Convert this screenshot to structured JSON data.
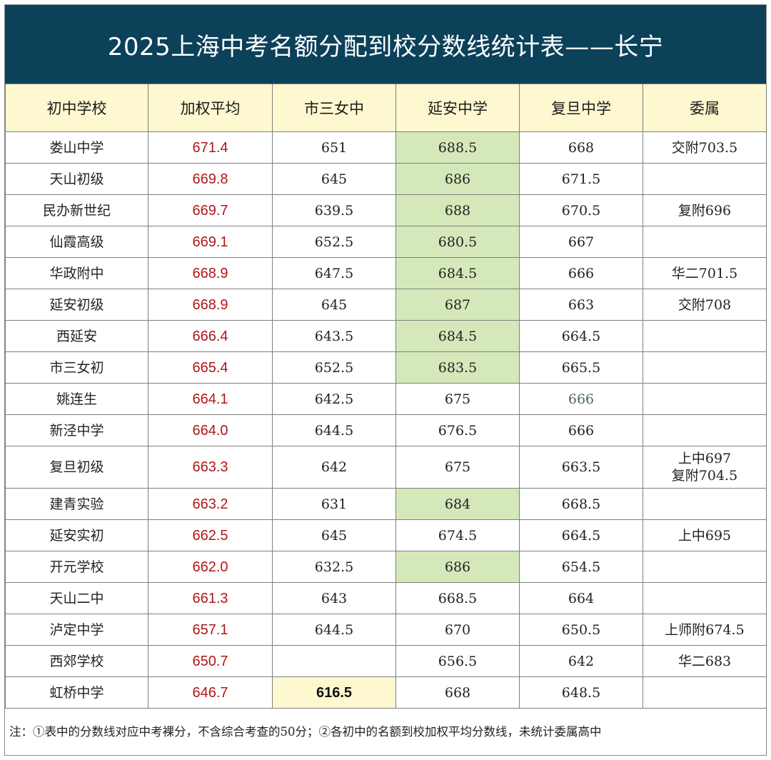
{
  "title": "2025上海中考名额分配到校分数线统计表——长宁",
  "headers": [
    "初中学校",
    "加权平均",
    "市三女中",
    "延安中学",
    "复旦中学",
    "委属"
  ],
  "rows": [
    {
      "school": "娄山中学",
      "avg": "671.4",
      "s3": "651",
      "yanan": "688.5",
      "fudan": "668",
      "wei": [
        "交附703.5"
      ]
    },
    {
      "school": "天山初级",
      "avg": "669.8",
      "s3": "645",
      "yanan": "686",
      "fudan": "671.5",
      "wei": []
    },
    {
      "school": "民办新世纪",
      "avg": "669.7",
      "s3": "639.5",
      "yanan": "688",
      "fudan": "670.5",
      "wei": [
        "复附696"
      ]
    },
    {
      "school": "仙霞高级",
      "avg": "669.1",
      "s3": "652.5",
      "yanan": "680.5",
      "fudan": "667",
      "wei": []
    },
    {
      "school": "华政附中",
      "avg": "668.9",
      "s3": "647.5",
      "yanan": "684.5",
      "fudan": "666",
      "wei": [
        "华二701.5"
      ]
    },
    {
      "school": "延安初级",
      "avg": "668.9",
      "s3": "645",
      "yanan": "687",
      "fudan": "663",
      "wei": [
        "交附708"
      ]
    },
    {
      "school": "西延安",
      "avg": "666.4",
      "s3": "643.5",
      "yanan": "684.5",
      "fudan": "664.5",
      "wei": []
    },
    {
      "school": "市三女初",
      "avg": "665.4",
      "s3": "652.5",
      "yanan": "683.5",
      "fudan": "665.5",
      "wei": []
    },
    {
      "school": "姚连生",
      "avg": "664.1",
      "s3": "642.5",
      "yanan": "675",
      "fudan": "666",
      "wei": []
    },
    {
      "school": "新泾中学",
      "avg": "664.0",
      "s3": "644.5",
      "yanan": "676.5",
      "fudan": "666",
      "wei": []
    },
    {
      "school": "复旦初级",
      "avg": "663.3",
      "s3": "642",
      "yanan": "675",
      "fudan": "663.5",
      "wei": [
        "上中697",
        "复附704.5"
      ]
    },
    {
      "school": "建青实验",
      "avg": "663.2",
      "s3": "631",
      "yanan": "684",
      "fudan": "668.5",
      "wei": []
    },
    {
      "school": "延安实初",
      "avg": "662.5",
      "s3": "645",
      "yanan": "674.5",
      "fudan": "664.5",
      "wei": [
        "上中695"
      ]
    },
    {
      "school": "开元学校",
      "avg": "662.0",
      "s3": "632.5",
      "yanan": "686",
      "fudan": "654.5",
      "wei": []
    },
    {
      "school": "天山二中",
      "avg": "661.3",
      "s3": "643",
      "yanan": "668.5",
      "fudan": "664",
      "wei": []
    },
    {
      "school": "泸定中学",
      "avg": "657.1",
      "s3": "644.5",
      "yanan": "670",
      "fudan": "650.5",
      "wei": [
        "上师附674.5"
      ]
    },
    {
      "school": "西郊学校",
      "avg": "650.7",
      "s3": "",
      "yanan": "656.5",
      "fudan": "642",
      "wei": [
        "华二683"
      ]
    },
    {
      "school": "虹桥中学",
      "avg": "646.7",
      "s3": "616.5",
      "yanan": "668",
      "fudan": "648.5",
      "wei": []
    }
  ],
  "highlight_colors": {
    "title_bg": "#0b4159",
    "header_bg": "#fdf8cf",
    "green_cell": "#d5e8ba",
    "avg_text": "#b0171a"
  },
  "note": "注：①表中的分数线对应中考裸分，不含综合考查的50分；②各初中的名额到校加权平均分数线，未统计委属高中"
}
